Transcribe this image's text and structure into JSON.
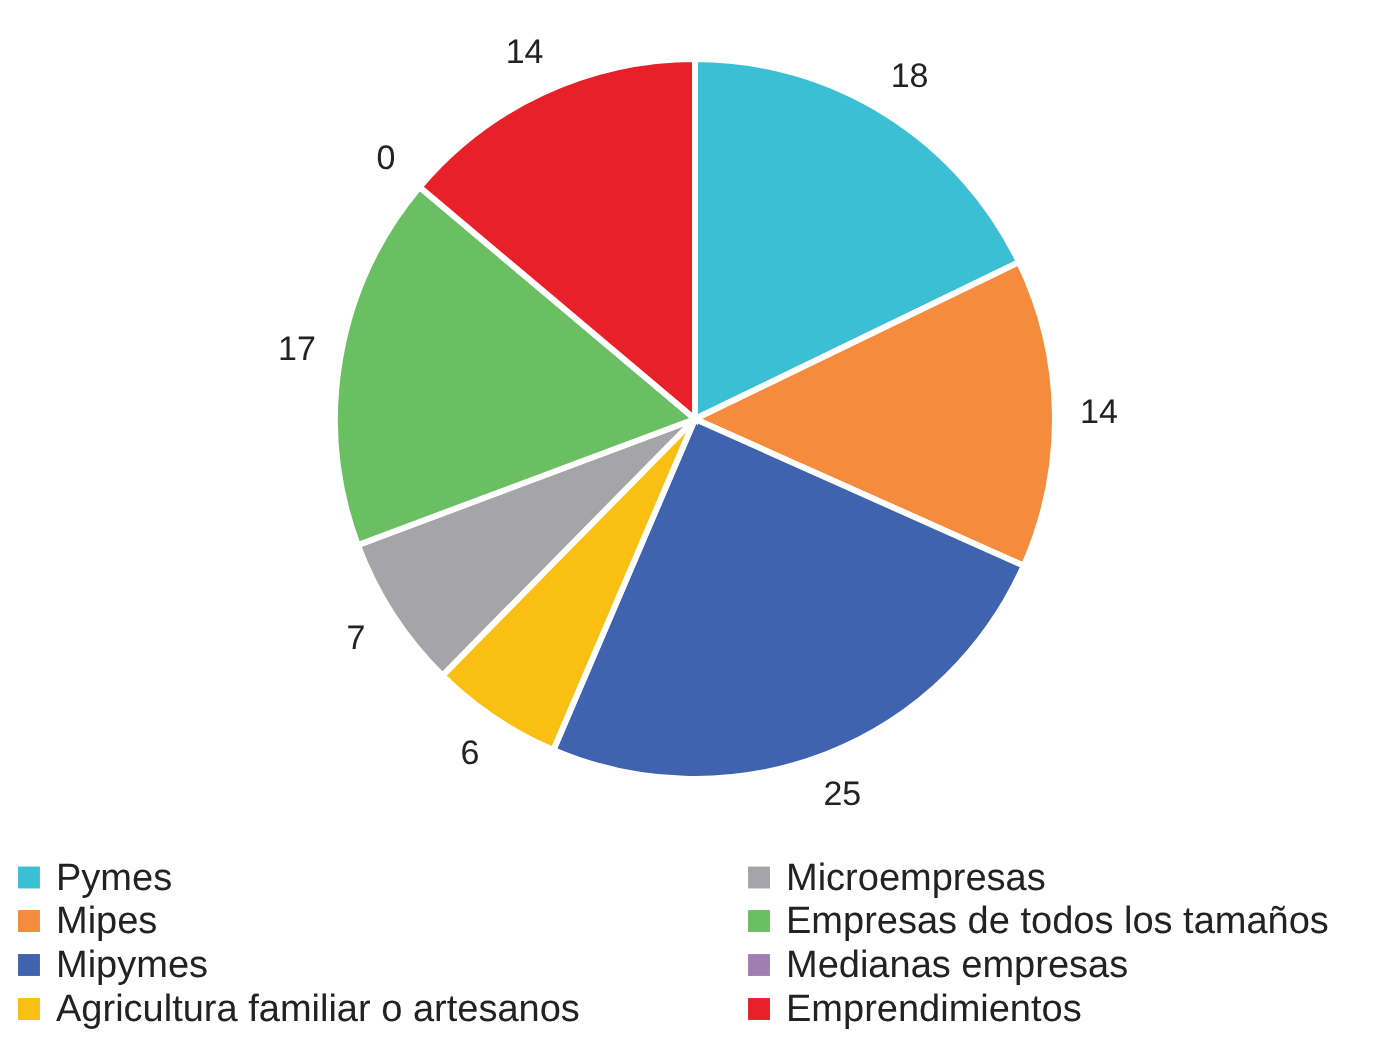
{
  "chart_data": {
    "type": "pie",
    "categories": [
      "Pymes",
      "Mipes",
      "Mipymes",
      "Agricultura familiar o artesanos",
      "Microempresas",
      "Empresas de todos los tamaños",
      "Medianas empresas",
      "Emprendimientos"
    ],
    "values": [
      18,
      14,
      25,
      6,
      7,
      17,
      0,
      14
    ],
    "colors": [
      "#3bbfd4",
      "#f58b3c",
      "#3f63ae",
      "#f9c013",
      "#a5a5a8",
      "#6abf63",
      "#a07fb0",
      "#e8202a"
    ],
    "value_labels": [
      "18",
      "14",
      "25",
      "6",
      "7",
      "17",
      "0",
      "14"
    ],
    "legend": "bottom"
  }
}
